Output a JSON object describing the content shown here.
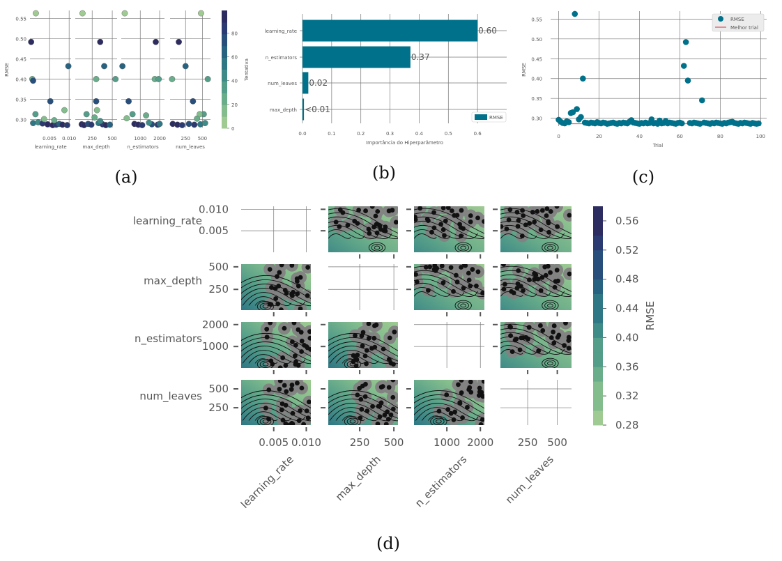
{
  "colors": {
    "panel_bg": "#ffffff",
    "grid": "#777777",
    "cmap": [
      "#9fca92",
      "#84bd8d",
      "#6aad8a",
      "#539d89",
      "#3f8b87",
      "#2f7784",
      "#276381",
      "#284f7c",
      "#2b3b72",
      "#2d2c61"
    ],
    "bar": "#00718a",
    "point": "#00718a",
    "best_line": "#d95b6b",
    "contour_gray": "#828282"
  },
  "panel_labels": {
    "a": "(a)",
    "b": "(b)",
    "c": "(c)",
    "d": "(d)"
  },
  "chart_data": [
    {
      "id": "a",
      "type": "scatter",
      "ylabel": "RMSE",
      "ylim": [
        0.28,
        0.57
      ],
      "yticks": [
        "0.30",
        "0.35",
        "0.40",
        "0.45",
        "0.50",
        "0.55"
      ],
      "colorbar": {
        "label": "Tentativa",
        "ticks": [
          "0",
          "20",
          "40",
          "60",
          "80"
        ],
        "range": [
          0,
          99
        ]
      },
      "subplots": [
        {
          "xlabel": "learning_rate",
          "xticks": [
            "0.005",
            "0.010"
          ],
          "xlim": [
            0.0,
            0.0105
          ],
          "points": [
            [
              0.0015,
              0.563,
              5
            ],
            [
              0.0003,
              0.492,
              90
            ],
            [
              0.0098,
              0.432,
              60
            ],
            [
              0.0006,
              0.4,
              20
            ],
            [
              0.0008,
              0.396,
              70
            ],
            [
              0.0052,
              0.345,
              75
            ],
            [
              0.0014,
              0.313,
              35
            ],
            [
              0.0088,
              0.323,
              10
            ],
            [
              0.0008,
              0.291,
              55
            ],
            [
              0.0021,
              0.293,
              45
            ],
            [
              0.0032,
              0.29,
              85
            ],
            [
              0.0045,
              0.288,
              95
            ],
            [
              0.0058,
              0.286,
              99
            ],
            [
              0.0067,
              0.287,
              80
            ],
            [
              0.0075,
              0.289,
              65
            ],
            [
              0.0083,
              0.287,
              92
            ],
            [
              0.0095,
              0.286,
              88
            ],
            [
              0.0036,
              0.301,
              15
            ],
            [
              0.0062,
              0.298,
              25
            ]
          ]
        },
        {
          "xlabel": "max_depth",
          "xticks": [
            "250",
            "500"
          ],
          "xlim": [
            40,
            560
          ],
          "points": [
            [
              130,
              0.563,
              5
            ],
            [
              350,
              0.492,
              90
            ],
            [
              400,
              0.432,
              60
            ],
            [
              300,
              0.4,
              20
            ],
            [
              540,
              0.4,
              35
            ],
            [
              300,
              0.345,
              75
            ],
            [
              180,
              0.313,
              35
            ],
            [
              310,
              0.323,
              10
            ],
            [
              280,
              0.305,
              25
            ],
            [
              120,
              0.288,
              95
            ],
            [
              150,
              0.286,
              99
            ],
            [
              200,
              0.289,
              70
            ],
            [
              240,
              0.287,
              85
            ],
            [
              330,
              0.291,
              55
            ],
            [
              380,
              0.288,
              80
            ],
            [
              420,
              0.286,
              92
            ],
            [
              470,
              0.287,
              65
            ],
            [
              350,
              0.296,
              45
            ]
          ]
        },
        {
          "xlabel": "n_estimators",
          "xticks": [
            "1000",
            "2000"
          ],
          "xlim": [
            20,
            2250
          ],
          "points": [
            [
              200,
              0.563,
              5
            ],
            [
              1800,
              0.492,
              90
            ],
            [
              80,
              0.432,
              60
            ],
            [
              1750,
              0.4,
              20
            ],
            [
              1950,
              0.4,
              35
            ],
            [
              400,
              0.345,
              75
            ],
            [
              600,
              0.313,
              35
            ],
            [
              300,
              0.303,
              10
            ],
            [
              1300,
              0.31,
              25
            ],
            [
              700,
              0.289,
              95
            ],
            [
              900,
              0.287,
              99
            ],
            [
              1100,
              0.286,
              85
            ],
            [
              1600,
              0.288,
              70
            ],
            [
              1900,
              0.287,
              80
            ],
            [
              2000,
              0.289,
              55
            ],
            [
              1450,
              0.292,
              45
            ]
          ]
        },
        {
          "xlabel": "num_leaves",
          "xticks": [
            "250",
            "500"
          ],
          "xlim": [
            20,
            620
          ],
          "points": [
            [
              480,
              0.563,
              5
            ],
            [
              150,
              0.492,
              90
            ],
            [
              250,
              0.432,
              60
            ],
            [
              50,
              0.4,
              20
            ],
            [
              580,
              0.4,
              35
            ],
            [
              360,
              0.345,
              75
            ],
            [
              520,
              0.313,
              35
            ],
            [
              460,
              0.313,
              10
            ],
            [
              420,
              0.302,
              25
            ],
            [
              60,
              0.289,
              95
            ],
            [
              130,
              0.287,
              99
            ],
            [
              200,
              0.286,
              85
            ],
            [
              300,
              0.289,
              70
            ],
            [
              380,
              0.287,
              80
            ],
            [
              470,
              0.288,
              55
            ],
            [
              540,
              0.291,
              45
            ]
          ]
        }
      ]
    },
    {
      "id": "b",
      "type": "bar",
      "orientation": "horizontal",
      "categories": [
        "learning_rate",
        "n_estimators",
        "num_leaves",
        "max_depth"
      ],
      "values": [
        0.6,
        0.37,
        0.02,
        0.005
      ],
      "value_labels": [
        "0.60",
        "0.37",
        "0.02",
        "<0.01"
      ],
      "xlabel": "Importância do Hiperparâmetro",
      "xlim": [
        0,
        0.7
      ],
      "xticks": [
        "0.0",
        "0.1",
        "0.2",
        "0.3",
        "0.4",
        "0.5",
        "0.6"
      ],
      "legend": {
        "label": "RMSE",
        "placement": "lower-right"
      }
    },
    {
      "id": "c",
      "type": "scatter",
      "xlabel": "Trial",
      "ylabel": "RMSE",
      "xlim": [
        -4,
        103
      ],
      "ylim": [
        0.28,
        0.57
      ],
      "xticks": [
        "0",
        "20",
        "40",
        "60",
        "80",
        "100"
      ],
      "yticks": [
        "0.30",
        "0.35",
        "0.40",
        "0.45",
        "0.50",
        "0.55"
      ],
      "legend": {
        "labels": [
          "RMSE",
          "Melhor trial"
        ],
        "placement": "upper-right"
      },
      "best_value": 0.286,
      "x": [
        0,
        1,
        2,
        3,
        4,
        5,
        6,
        7,
        8,
        9,
        10,
        11,
        12,
        13,
        14,
        15,
        16,
        17,
        18,
        19,
        20,
        21,
        22,
        23,
        24,
        25,
        26,
        27,
        28,
        29,
        30,
        31,
        32,
        33,
        34,
        35,
        36,
        37,
        38,
        39,
        40,
        41,
        42,
        43,
        44,
        45,
        46,
        47,
        48,
        49,
        50,
        51,
        52,
        53,
        54,
        55,
        56,
        57,
        58,
        59,
        60,
        61,
        62,
        63,
        64,
        65,
        66,
        67,
        68,
        69,
        70,
        71,
        72,
        73,
        74,
        75,
        76,
        77,
        78,
        79,
        80,
        81,
        82,
        83,
        84,
        85,
        86,
        87,
        88,
        89,
        90,
        91,
        92,
        93,
        94,
        95,
        96,
        97,
        98,
        99
      ],
      "y": [
        0.296,
        0.291,
        0.288,
        0.287,
        0.292,
        0.29,
        0.313,
        0.315,
        0.563,
        0.323,
        0.297,
        0.303,
        0.4,
        0.289,
        0.288,
        0.287,
        0.289,
        0.288,
        0.287,
        0.29,
        0.288,
        0.287,
        0.289,
        0.288,
        0.286,
        0.287,
        0.288,
        0.289,
        0.287,
        0.286,
        0.288,
        0.287,
        0.289,
        0.288,
        0.287,
        0.291,
        0.295,
        0.289,
        0.288,
        0.287,
        0.286,
        0.288,
        0.287,
        0.289,
        0.287,
        0.288,
        0.297,
        0.287,
        0.288,
        0.286,
        0.294,
        0.287,
        0.288,
        0.293,
        0.287,
        0.289,
        0.288,
        0.287,
        0.286,
        0.288,
        0.289,
        0.287,
        0.432,
        0.492,
        0.395,
        0.288,
        0.287,
        0.289,
        0.288,
        0.287,
        0.286,
        0.345,
        0.289,
        0.288,
        0.287,
        0.286,
        0.288,
        0.287,
        0.289,
        0.288,
        0.287,
        0.286,
        0.288,
        0.287,
        0.289,
        0.29,
        0.291,
        0.288,
        0.287,
        0.286,
        0.288,
        0.287,
        0.289,
        0.288,
        0.287,
        0.286,
        0.288,
        0.287,
        0.286,
        0.287
      ]
    },
    {
      "id": "d",
      "type": "heatmap",
      "description_kind": "contour matrix",
      "params": [
        "learning_rate",
        "max_depth",
        "n_estimators",
        "num_leaves"
      ],
      "ticks": {
        "learning_rate": [
          [
            "0.005",
            0.005
          ],
          [
            "0.010",
            0.01
          ]
        ],
        "max_depth": [
          [
            "250",
            250
          ],
          [
            "500",
            500
          ]
        ],
        "n_estimators": [
          [
            "1000",
            1000
          ],
          [
            "2000",
            2000
          ]
        ],
        "num_leaves": [
          [
            "250",
            250
          ],
          [
            "500",
            500
          ]
        ]
      },
      "ranges": {
        "learning_rate": [
          0.0,
          0.0107
        ],
        "max_depth": [
          20,
          530
        ],
        "n_estimators": [
          20,
          2120
        ],
        "num_leaves": [
          20,
          620
        ]
      },
      "colorbar": {
        "label": "RMSE",
        "ticks": [
          "0.28",
          "0.32",
          "0.36",
          "0.40",
          "0.44",
          "0.48",
          "0.52",
          "0.56"
        ],
        "range": [
          0.28,
          0.58
        ]
      }
    }
  ]
}
